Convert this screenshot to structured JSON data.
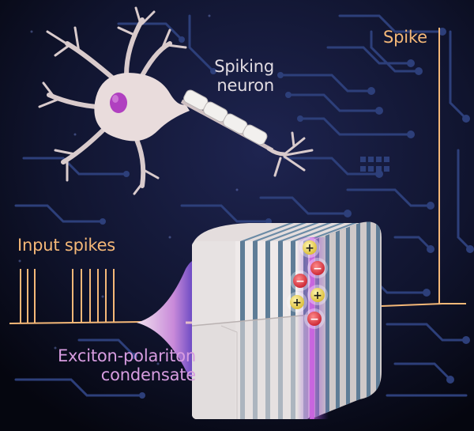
{
  "labels": {
    "spiking_neuron": [
      "Spiking",
      "neuron"
    ],
    "spike": "Spike",
    "input_spikes": "Input spikes",
    "condensate": [
      "Exciton-polariton",
      "condensate"
    ]
  },
  "colors": {
    "background": "#0a0c24",
    "circuit": "#2d3f7a",
    "signal": "#f5b878",
    "neuron_text": "#e2dce2",
    "condensate_text": "#d79ce0",
    "neuron_body": "#e9dcdc",
    "nucleus": "#b040c0",
    "cavity_stripe": "#5f7d97",
    "cavity_face": "#efeaea",
    "charge_positive": "#e8d44a",
    "charge_negative": "#e03a4a"
  },
  "icons": {
    "positive": "plus-charge-icon",
    "negative": "minus-charge-icon"
  },
  "charges": {
    "positive_symbol": "+",
    "negative_symbol": "−"
  }
}
